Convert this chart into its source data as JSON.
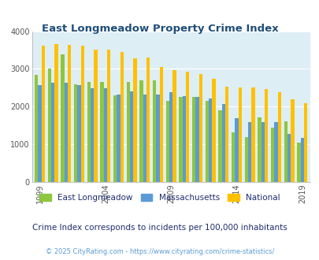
{
  "title": "East Longmeadow Property Crime Index",
  "years": [
    1999,
    2000,
    2001,
    2002,
    2003,
    2004,
    2005,
    2006,
    2007,
    2008,
    2009,
    2010,
    2011,
    2012,
    2013,
    2014,
    2015,
    2016,
    2017,
    2018,
    2019
  ],
  "east_longmeadow": [
    2850,
    3000,
    3380,
    2600,
    2650,
    2650,
    2300,
    2650,
    2700,
    2700,
    2150,
    2250,
    2250,
    2150,
    1900,
    1320,
    1190,
    1710,
    1440,
    1600,
    1050
  ],
  "massachusetts": [
    2570,
    2640,
    2630,
    2570,
    2490,
    2490,
    2320,
    2400,
    2330,
    2330,
    2380,
    2280,
    2260,
    2220,
    2060,
    1700,
    1580,
    1580,
    1580,
    1270,
    1170
  ],
  "national": [
    3620,
    3660,
    3640,
    3610,
    3520,
    3520,
    3440,
    3290,
    3300,
    3050,
    2960,
    2920,
    2870,
    2740,
    2520,
    2500,
    2500,
    2460,
    2390,
    2190,
    2100
  ],
  "colors": {
    "east_longmeadow": "#8dc63f",
    "massachusetts": "#5b9bd5",
    "national": "#ffc000"
  },
  "background_color": "#deeef5",
  "ylim": [
    0,
    4000
  ],
  "yticks": [
    0,
    1000,
    2000,
    3000,
    4000
  ],
  "xlabel_ticks": [
    1999,
    2004,
    2009,
    2014,
    2019
  ],
  "legend_labels": [
    "East Longmeadow",
    "Massachusetts",
    "National"
  ],
  "subtitle": "Crime Index corresponds to incidents per 100,000 inhabitants",
  "footer": "© 2025 CityRating.com - https://www.cityrating.com/crime-statistics/",
  "title_color": "#1f4e79",
  "subtitle_color": "#1f2d6e",
  "footer_color": "#5b9bd5",
  "bar_width": 0.26,
  "figsize": [
    4.06,
    3.3
  ],
  "dpi": 100
}
